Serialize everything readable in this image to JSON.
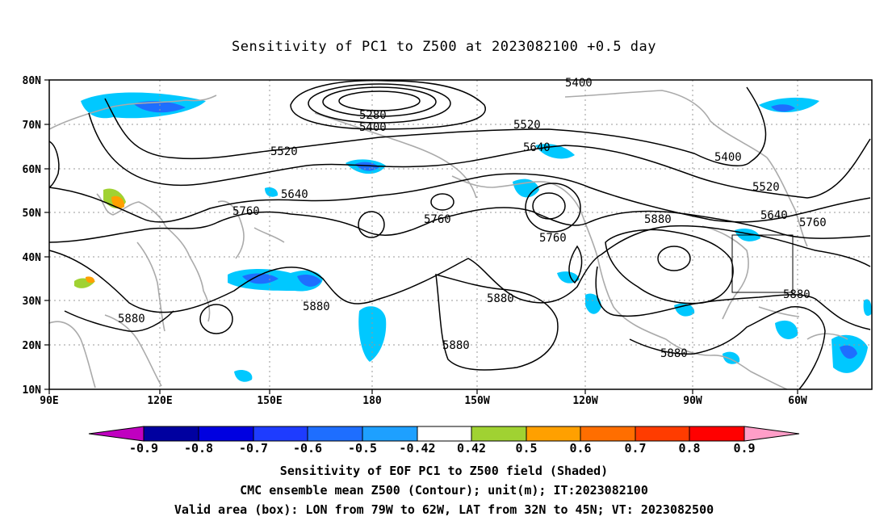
{
  "title": "Sensitivity of PC1 to Z500 at 2023082100 +0.5 day",
  "lat_labels": [
    "80N",
    "70N",
    "60N",
    "50N",
    "40N",
    "30N",
    "20N",
    "10N"
  ],
  "lon_labels": [
    "90E",
    "120E",
    "150E",
    "180",
    "150W",
    "120W",
    "90W",
    "60W"
  ],
  "contour_labels": [
    "5280",
    "5400",
    "5520",
    "5640",
    "5760",
    "5880",
    "5400",
    "5520",
    "5640",
    "5760",
    "5880",
    "5400",
    "5520",
    "5640",
    "5760",
    "5880"
  ],
  "colorbar": {
    "labels": [
      "-0.9",
      "-0.8",
      "-0.7",
      "-0.6",
      "-0.5",
      "-0.42",
      "0.42",
      "0.5",
      "0.6",
      "0.7",
      "0.8",
      "0.9"
    ],
    "colors": [
      "#c000c0",
      "#0000a0",
      "#0000e0",
      "#1e3cff",
      "#1e6eff",
      "#1ea0ff",
      "#00c8ff",
      "#ffffff",
      "#a0d232",
      "#ffa000",
      "#ff6e00",
      "#ff3c00",
      "#ff0000",
      "#ff9ec8"
    ]
  },
  "footer": {
    "line1": "Sensitivity of EOF PC1 to Z500 field (Shaded)",
    "line2": "CMC ensemble mean Z500 (Contour); unit(m); IT:2023082100",
    "line3": "Valid area (box): LON from 79W to 62W, LAT from 32N to 45N; VT: 2023082500"
  }
}
